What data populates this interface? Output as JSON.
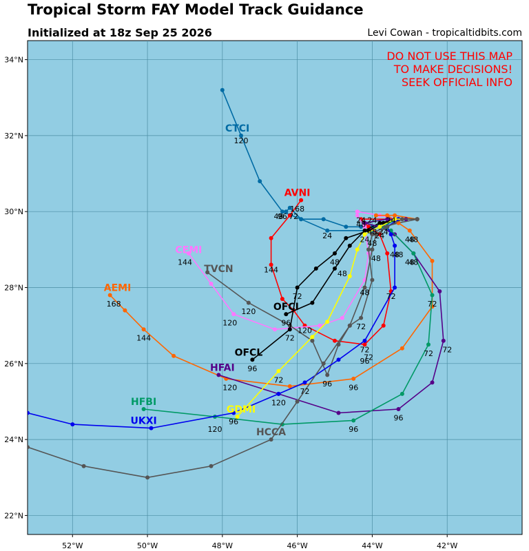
{
  "title": "Tropical Storm FAY Model Track Guidance",
  "subtitle": "Initialized at 18z Sep 25 2026",
  "credit": "Levi Cowan - tropicaltidbits.com",
  "warning": [
    "DO NOT USE THIS MAP",
    "TO MAKE DECISIONS!",
    "SEEK OFFICIAL INFO"
  ],
  "colors": {
    "ocean": "#92cde3",
    "grid": "#4a8da3",
    "warning": "#ff0000"
  },
  "chart_data": {
    "type": "track-map",
    "lon_range": [
      -53.2,
      -40.0
    ],
    "lat_range": [
      21.5,
      34.5
    ],
    "lon_ticks": [
      "52°W",
      "50°W",
      "48°W",
      "46°W",
      "44°W",
      "42°W"
    ],
    "lat_ticks": [
      "22°N",
      "24°N",
      "26°N",
      "28°N",
      "30°N",
      "32°N",
      "34°N"
    ],
    "tracks": [
      {
        "name": "CTCI",
        "color": "#006ba4",
        "label_pos": [
          -47.6,
          32.2
        ],
        "points": [
          [
            -46.3,
            30.0
          ],
          [
            -46.2,
            30.1
          ],
          [
            -45.9,
            29.8
          ],
          [
            -45.2,
            29.5
          ],
          [
            -44.0,
            29.5
          ],
          [
            -43.6,
            29.7
          ],
          [
            -43.3,
            29.8
          ],
          [
            -42.8,
            29.8
          ],
          [
            -43.4,
            29.8
          ],
          [
            -43.7,
            29.7
          ],
          [
            -44.0,
            29.6
          ],
          [
            -44.3,
            29.6
          ],
          [
            -44.7,
            29.6
          ],
          [
            -45.3,
            29.8
          ],
          [
            -45.9,
            29.8
          ],
          [
            -46.4,
            30.0
          ],
          [
            -47.0,
            30.8
          ],
          [
            -47.5,
            32.0
          ],
          [
            -48.0,
            33.2
          ]
        ],
        "hour_labels": [
          {
            "t": "120",
            "lon": -47.5,
            "lat": 31.8
          },
          {
            "t": "24",
            "lon": -45.2,
            "lat": 29.3
          }
        ]
      },
      {
        "name": "AVNI",
        "color": "#ff0000",
        "label_pos": [
          -46.0,
          30.5
        ],
        "points": [
          [
            -45.9,
            30.3
          ],
          [
            -46.2,
            29.9
          ],
          [
            -46.7,
            29.3
          ],
          [
            -46.7,
            28.6
          ],
          [
            -46.4,
            27.7
          ],
          [
            -46.1,
            27.4
          ],
          [
            -45.8,
            27.0
          ],
          [
            -45.0,
            26.6
          ],
          [
            -44.2,
            26.5
          ],
          [
            -43.7,
            27.0
          ],
          [
            -43.5,
            27.9
          ],
          [
            -43.6,
            28.9
          ],
          [
            -43.8,
            29.4
          ],
          [
            -44.1,
            29.6
          ],
          [
            -44.3,
            29.8
          ],
          [
            -43.4,
            29.8
          ],
          [
            -42.8,
            29.8
          ]
        ],
        "hour_labels": [
          {
            "t": "168",
            "lon": -46.0,
            "lat": 30.0
          },
          {
            "t": "48",
            "lon": -46.5,
            "lat": 29.8
          },
          {
            "t": "144",
            "lon": -46.7,
            "lat": 28.4
          },
          {
            "t": "72",
            "lon": -44.1,
            "lat": 26.1
          }
        ]
      },
      {
        "name": "CEMI",
        "color": "#ff77ff",
        "label_pos": [
          -48.9,
          29.0
        ],
        "points": [
          [
            -48.9,
            28.9
          ],
          [
            -48.3,
            28.1
          ],
          [
            -47.7,
            27.3
          ],
          [
            -46.6,
            26.9
          ],
          [
            -45.4,
            27.0
          ],
          [
            -44.8,
            27.2
          ],
          [
            -44.2,
            28.2
          ],
          [
            -44.1,
            28.9
          ],
          [
            -44.2,
            29.6
          ],
          [
            -44.4,
            29.9
          ],
          [
            -44.4,
            30.0
          ],
          [
            -43.8,
            29.9
          ],
          [
            -43.3,
            29.8
          ],
          [
            -42.8,
            29.8
          ]
        ],
        "hour_labels": [
          {
            "t": "144",
            "lon": -49.0,
            "lat": 28.6
          },
          {
            "t": "120",
            "lon": -47.8,
            "lat": 27.0
          },
          {
            "t": "48",
            "lon": -44.2,
            "lat": 27.8
          }
        ]
      },
      {
        "name": "TVCN",
        "color": "#555555",
        "label_pos": [
          -48.1,
          28.5
        ],
        "points": [
          [
            -48.4,
            28.4
          ],
          [
            -47.3,
            27.6
          ],
          [
            -46.2,
            27.0
          ],
          [
            -45.6,
            26.6
          ],
          [
            -45.2,
            25.7
          ],
          [
            -44.9,
            26.5
          ],
          [
            -44.6,
            27.0
          ],
          [
            -44.3,
            27.2
          ],
          [
            -44.0,
            28.2
          ],
          [
            -44.1,
            29.0
          ],
          [
            -44.0,
            29.4
          ],
          [
            -43.7,
            29.6
          ],
          [
            -43.3,
            29.7
          ],
          [
            -42.8,
            29.8
          ]
        ],
        "hour_labels": [
          {
            "t": "120",
            "lon": -47.3,
            "lat": 27.3
          },
          {
            "t": "96",
            "lon": -45.2,
            "lat": 25.4
          },
          {
            "t": "72",
            "lon": -44.3,
            "lat": 26.9
          },
          {
            "t": "48",
            "lon": -44.2,
            "lat": 27.8
          }
        ]
      },
      {
        "name": "AEMI",
        "color": "#ff6600",
        "label_pos": [
          -50.8,
          28.0
        ],
        "points": [
          [
            -51.0,
            27.8
          ],
          [
            -50.6,
            27.4
          ],
          [
            -50.1,
            26.9
          ],
          [
            -49.3,
            26.2
          ],
          [
            -47.9,
            25.6
          ],
          [
            -46.2,
            25.4
          ],
          [
            -44.5,
            25.6
          ],
          [
            -43.2,
            26.4
          ],
          [
            -42.4,
            27.5
          ],
          [
            -42.4,
            28.7
          ],
          [
            -43.0,
            29.5
          ],
          [
            -43.3,
            29.7
          ],
          [
            -43.6,
            29.9
          ],
          [
            -43.9,
            29.9
          ],
          [
            -43.4,
            29.9
          ],
          [
            -42.8,
            29.8
          ]
        ],
        "hour_labels": [
          {
            "t": "168",
            "lon": -50.9,
            "lat": 27.5
          },
          {
            "t": "144",
            "lon": -50.1,
            "lat": 26.6
          },
          {
            "t": "120",
            "lon": -47.8,
            "lat": 25.3
          },
          {
            "t": "96",
            "lon": -44.5,
            "lat": 25.3
          },
          {
            "t": "48",
            "lon": -43.0,
            "lat": 29.2
          }
        ]
      },
      {
        "name": "OFCI",
        "color": "#000000",
        "label_pos": [
          -46.3,
          27.5
        ],
        "points": [
          [
            -46.3,
            27.3
          ],
          [
            -45.6,
            27.6
          ],
          [
            -45.0,
            28.5
          ],
          [
            -44.6,
            29.1
          ],
          [
            -44.2,
            29.5
          ],
          [
            -43.8,
            29.7
          ],
          [
            -43.3,
            29.8
          ],
          [
            -42.8,
            29.8
          ]
        ],
        "hour_labels": [
          {
            "t": "96",
            "lon": -46.3,
            "lat": 27.0
          },
          {
            "t": "120",
            "lon": -45.8,
            "lat": 26.8
          }
        ]
      },
      {
        "name": "OFCL",
        "color": "#000000",
        "label_pos": [
          -47.3,
          26.3
        ],
        "points": [
          [
            -47.2,
            26.1
          ],
          [
            -46.2,
            26.9
          ],
          [
            -46.0,
            28.0
          ],
          [
            -45.5,
            28.5
          ],
          [
            -45.0,
            28.9
          ],
          [
            -44.7,
            29.3
          ],
          [
            -44.1,
            29.5
          ],
          [
            -43.7,
            29.7
          ],
          [
            -43.3,
            29.8
          ],
          [
            -42.8,
            29.8
          ]
        ],
        "hour_labels": [
          {
            "t": "96",
            "lon": -47.2,
            "lat": 25.8
          },
          {
            "t": "72",
            "lon": -46.2,
            "lat": 26.6
          },
          {
            "t": "72",
            "lon": -46.0,
            "lat": 27.7
          },
          {
            "t": "48",
            "lon": -45.0,
            "lat": 28.6
          },
          {
            "t": "48",
            "lon": -44.8,
            "lat": 28.3
          }
        ]
      },
      {
        "name": "HFAI",
        "color": "#550088",
        "label_pos": [
          -48.0,
          25.9
        ],
        "points": [
          [
            -48.1,
            25.7
          ],
          [
            -46.5,
            25.2
          ],
          [
            -44.9,
            24.7
          ],
          [
            -43.3,
            24.8
          ],
          [
            -42.4,
            25.5
          ],
          [
            -42.1,
            26.6
          ],
          [
            -42.2,
            27.9
          ],
          [
            -42.9,
            28.9
          ],
          [
            -43.4,
            29.4
          ],
          [
            -43.8,
            29.6
          ],
          [
            -44.2,
            29.7
          ],
          [
            -43.6,
            29.8
          ],
          [
            -43.1,
            29.8
          ],
          [
            -42.8,
            29.8
          ]
        ],
        "hour_labels": [
          {
            "t": "96",
            "lon": -43.3,
            "lat": 24.5
          },
          {
            "t": "72",
            "lon": -42.0,
            "lat": 26.3
          },
          {
            "t": "48",
            "lon": -42.9,
            "lat": 28.6
          }
        ]
      },
      {
        "name": "HFBI",
        "color": "#009966",
        "label_pos": [
          -50.1,
          25.0
        ],
        "points": [
          [
            -50.1,
            24.8
          ],
          [
            -48.2,
            24.6
          ],
          [
            -46.4,
            24.4
          ],
          [
            -44.5,
            24.5
          ],
          [
            -43.2,
            25.2
          ],
          [
            -42.5,
            26.5
          ],
          [
            -42.4,
            27.8
          ],
          [
            -42.9,
            28.9
          ],
          [
            -43.5,
            29.5
          ],
          [
            -43.8,
            29.6
          ],
          [
            -43.3,
            29.8
          ],
          [
            -42.8,
            29.8
          ]
        ],
        "hour_labels": [
          {
            "t": "96",
            "lon": -44.5,
            "lat": 24.2
          },
          {
            "t": "72",
            "lon": -42.5,
            "lat": 26.2
          },
          {
            "t": "72",
            "lon": -42.4,
            "lat": 27.5
          },
          {
            "t": "48",
            "lon": -43.0,
            "lat": 28.6
          }
        ]
      },
      {
        "name": "UKXI",
        "color": "#0000ee",
        "label_pos": [
          -50.1,
          24.5
        ],
        "points": [
          [
            -53.2,
            24.7
          ],
          [
            -52.0,
            24.4
          ],
          [
            -49.9,
            24.3
          ],
          [
            -47.7,
            24.7
          ],
          [
            -46.5,
            25.2
          ],
          [
            -45.8,
            25.5
          ],
          [
            -44.9,
            26.1
          ],
          [
            -44.2,
            26.6
          ],
          [
            -43.4,
            28.0
          ],
          [
            -43.4,
            29.1
          ],
          [
            -43.5,
            29.4
          ],
          [
            -43.6,
            29.6
          ],
          [
            -43.3,
            29.8
          ],
          [
            -42.8,
            29.8
          ]
        ],
        "hour_labels": [
          {
            "t": "120",
            "lon": -48.2,
            "lat": 24.2
          },
          {
            "t": "96",
            "lon": -47.7,
            "lat": 24.4
          },
          {
            "t": "120",
            "lon": -46.5,
            "lat": 24.9
          },
          {
            "t": "72",
            "lon": -45.8,
            "lat": 25.2
          },
          {
            "t": "72",
            "lon": -43.5,
            "lat": 27.7
          },
          {
            "t": "48",
            "lon": -43.4,
            "lat": 28.8
          }
        ]
      },
      {
        "name": "GDMI",
        "color": "#ffff00",
        "label_pos": [
          -47.5,
          24.8
        ],
        "points": [
          [
            -47.6,
            24.6
          ],
          [
            -46.5,
            25.8
          ],
          [
            -45.6,
            26.7
          ],
          [
            -45.2,
            27.1
          ],
          [
            -44.6,
            28.3
          ],
          [
            -44.4,
            29.0
          ],
          [
            -44.2,
            29.4
          ],
          [
            -43.8,
            29.6
          ],
          [
            -43.4,
            29.8
          ],
          [
            -42.8,
            29.8
          ]
        ],
        "hour_labels": [
          {
            "t": "72",
            "lon": -46.5,
            "lat": 25.5
          }
        ]
      },
      {
        "name": "HCCA",
        "color": "#555555",
        "label_pos": [
          -46.7,
          24.2
        ],
        "points": [
          [
            -53.2,
            23.8
          ],
          [
            -51.7,
            23.3
          ],
          [
            -50.0,
            23.0
          ],
          [
            -48.3,
            23.3
          ],
          [
            -46.7,
            24.0
          ],
          [
            -46.0,
            25.0
          ],
          [
            -45.3,
            26.0
          ],
          [
            -44.6,
            27.0
          ],
          [
            -44.2,
            28.0
          ],
          [
            -44.0,
            29.0
          ],
          [
            -43.9,
            29.4
          ],
          [
            -43.6,
            29.6
          ],
          [
            -43.2,
            29.8
          ],
          [
            -42.8,
            29.8
          ]
        ],
        "hour_labels": [
          {
            "t": "24",
            "lon": -44.2,
            "lat": 29.2
          }
        ]
      }
    ],
    "loose_hour_labels": [
      {
        "t": "96",
        "lon": -46.4,
        "lat": 29.8
      },
      {
        "t": "72",
        "lon": -46.1,
        "lat": 29.8
      },
      {
        "t": "24",
        "lon": -44.3,
        "lat": 29.7
      },
      {
        "t": "24",
        "lon": -44.0,
        "lat": 29.7
      },
      {
        "t": "48",
        "lon": -44.3,
        "lat": 29.6
      },
      {
        "t": "48",
        "lon": -44.0,
        "lat": 29.4
      },
      {
        "t": "24",
        "lon": -43.8,
        "lat": 29.3
      },
      {
        "t": "24",
        "lon": -43.5,
        "lat": 29.7
      },
      {
        "t": "48",
        "lon": -44.0,
        "lat": 29.1
      },
      {
        "t": "24",
        "lon": -43.7,
        "lat": 29.4
      },
      {
        "t": "48",
        "lon": -43.9,
        "lat": 28.7
      },
      {
        "t": "48",
        "lon": -43.3,
        "lat": 28.8
      },
      {
        "t": "48",
        "lon": -42.9,
        "lat": 29.2
      },
      {
        "t": "72",
        "lon": -44.2,
        "lat": 26.3
      },
      {
        "t": "96",
        "lon": -44.2,
        "lat": 26.0
      }
    ]
  }
}
